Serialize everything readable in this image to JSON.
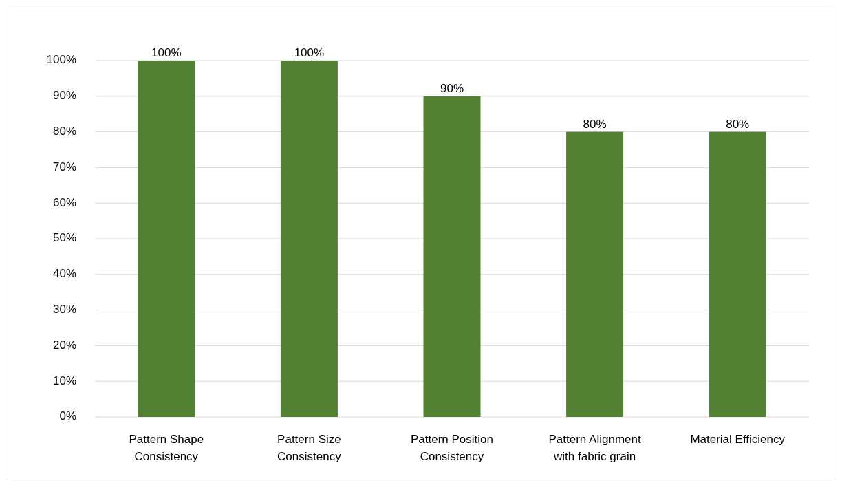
{
  "chart_data": {
    "type": "bar",
    "categories": [
      "Pattern Shape Consistency",
      "Pattern Size Consistency",
      "Pattern Position Consistency",
      "Pattern Alignment with fabric grain",
      "Material Efficiency"
    ],
    "values": [
      100,
      100,
      90,
      80,
      80
    ],
    "color": "#548235",
    "value_labels": [
      "100%",
      "100%",
      "90%",
      "80%",
      "80%"
    ],
    "ylim": [
      0,
      100
    ],
    "yticks": [
      {
        "value": 0,
        "label": "0%"
      },
      {
        "value": 10,
        "label": "10%"
      },
      {
        "value": 20,
        "label": "20%"
      },
      {
        "value": 30,
        "label": "30%"
      },
      {
        "value": 40,
        "label": "40%"
      },
      {
        "value": 50,
        "label": "50%"
      },
      {
        "value": 60,
        "label": "60%"
      },
      {
        "value": 70,
        "label": "70%"
      },
      {
        "value": 80,
        "label": "80%"
      },
      {
        "value": 90,
        "label": "90%"
      },
      {
        "value": 100,
        "label": "100%"
      }
    ],
    "grid": "y"
  }
}
